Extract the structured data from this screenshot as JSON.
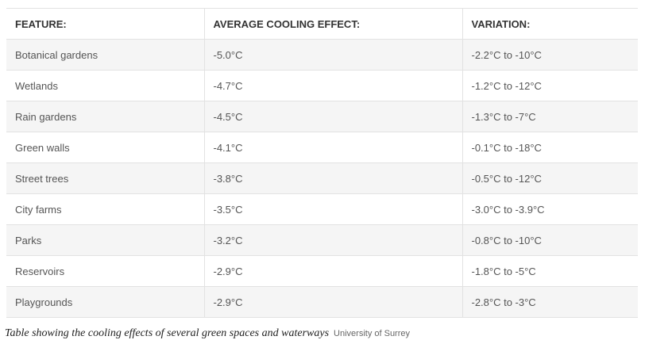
{
  "table": {
    "headers": [
      "FEATURE:",
      "AVERAGE COOLING EFFECT:",
      "VARIATION:"
    ],
    "rows": [
      [
        "Botanical gardens",
        "-5.0°C",
        "-2.2°C to -10°C"
      ],
      [
        "Wetlands",
        "-4.7°C",
        "-1.2°C to -12°C"
      ],
      [
        "Rain gardens",
        "-4.5°C",
        "-1.3°C to -7°C"
      ],
      [
        "Green walls",
        "-4.1°C",
        "-0.1°C to -18°C"
      ],
      [
        "Street trees",
        "-3.8°C",
        "-0.5°C to -12°C"
      ],
      [
        "City farms",
        "-3.5°C",
        "-3.0°C to -3.9°C"
      ],
      [
        "Parks",
        "-3.2°C",
        "-0.8°C to -10°C"
      ],
      [
        "Reservoirs",
        "-2.9°C",
        "-1.8°C to -5°C"
      ],
      [
        "Playgrounds",
        "-2.9°C",
        "-2.8°C to -3°C"
      ]
    ]
  },
  "caption": {
    "text": "Table showing the cooling effects of several green spaces and waterways",
    "credit": "University of Surrey"
  }
}
